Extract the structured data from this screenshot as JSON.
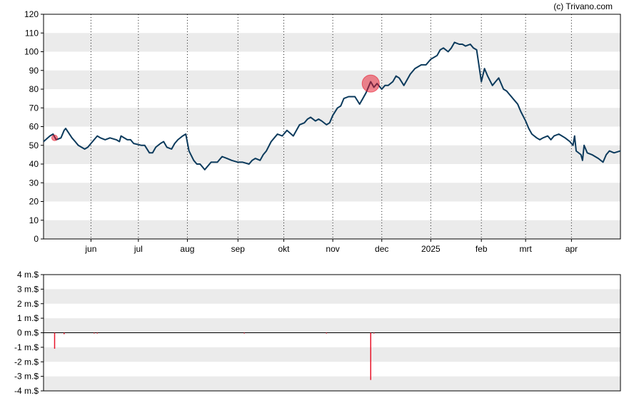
{
  "credit": "(c) Trivano.com",
  "colors": {
    "price_line": "#0b3a5c",
    "band": "#ebebeb",
    "volume_bar": "#e8152a",
    "marker": "#e8152a"
  },
  "chart_data": [
    {
      "type": "line",
      "title": "",
      "xlabel": "",
      "ylabel": "",
      "ylim": [
        0,
        120
      ],
      "y_ticks": [
        "0",
        "10",
        "20",
        "30",
        "40",
        "50",
        "60",
        "70",
        "80",
        "90",
        "100",
        "110",
        "120"
      ],
      "x_ticks": [
        {
          "label": "jun",
          "date": "2024-06-01"
        },
        {
          "label": "jul",
          "date": "2024-07-01"
        },
        {
          "label": "aug",
          "date": "2024-08-01"
        },
        {
          "label": "sep",
          "date": "2024-09-02"
        },
        {
          "label": "okt",
          "date": "2024-10-01"
        },
        {
          "label": "nov",
          "date": "2024-11-01"
        },
        {
          "label": "dec",
          "date": "2024-12-02"
        },
        {
          "label": "2025",
          "date": "2025-01-02"
        },
        {
          "label": "feb",
          "date": "2025-02-03"
        },
        {
          "label": "mrt",
          "date": "2025-03-03"
        },
        {
          "label": "apr",
          "date": "2025-04-01"
        }
      ],
      "x_range": [
        "2024-05-02",
        "2025-05-02"
      ],
      "grid": "alternating horizontal bands, dotted vertical lines at month ticks",
      "series": [
        {
          "points": [
            [
              "2024-05-02",
              52
            ],
            [
              "2024-05-06",
              55
            ],
            [
              "2024-05-08",
              56
            ],
            [
              "2024-05-10",
              53
            ],
            [
              "2024-05-13",
              54
            ],
            [
              "2024-05-15",
              58
            ],
            [
              "2024-05-16",
              59
            ],
            [
              "2024-05-20",
              54
            ],
            [
              "2024-05-22",
              52
            ],
            [
              "2024-05-24",
              50
            ],
            [
              "2024-05-28",
              48
            ],
            [
              "2024-05-30",
              49
            ],
            [
              "2024-06-03",
              53
            ],
            [
              "2024-06-05",
              55
            ],
            [
              "2024-06-07",
              54
            ],
            [
              "2024-06-10",
              53
            ],
            [
              "2024-06-13",
              54
            ],
            [
              "2024-06-17",
              53
            ],
            [
              "2024-06-19",
              52
            ],
            [
              "2024-06-20",
              55
            ],
            [
              "2024-06-24",
              53
            ],
            [
              "2024-06-26",
              53
            ],
            [
              "2024-06-28",
              51
            ],
            [
              "2024-07-03",
              50
            ],
            [
              "2024-07-05",
              50
            ],
            [
              "2024-07-08",
              46
            ],
            [
              "2024-07-10",
              46
            ],
            [
              "2024-07-12",
              49
            ],
            [
              "2024-07-15",
              51
            ],
            [
              "2024-07-17",
              52
            ],
            [
              "2024-07-19",
              49
            ],
            [
              "2024-07-22",
              48
            ],
            [
              "2024-07-24",
              51
            ],
            [
              "2024-07-26",
              53
            ],
            [
              "2024-07-29",
              55
            ],
            [
              "2024-07-31",
              56
            ],
            [
              "2024-08-02",
              47
            ],
            [
              "2024-08-05",
              42
            ],
            [
              "2024-08-07",
              40
            ],
            [
              "2024-08-09",
              40
            ],
            [
              "2024-08-12",
              37
            ],
            [
              "2024-08-14",
              39
            ],
            [
              "2024-08-16",
              41
            ],
            [
              "2024-08-20",
              41
            ],
            [
              "2024-08-23",
              44
            ],
            [
              "2024-08-26",
              43
            ],
            [
              "2024-08-29",
              42
            ],
            [
              "2024-09-02",
              41
            ],
            [
              "2024-09-05",
              41
            ],
            [
              "2024-09-09",
              40
            ],
            [
              "2024-09-11",
              42
            ],
            [
              "2024-09-13",
              43
            ],
            [
              "2024-09-16",
              42
            ],
            [
              "2024-09-18",
              45
            ],
            [
              "2024-09-20",
              47
            ],
            [
              "2024-09-23",
              52
            ],
            [
              "2024-09-25",
              54
            ],
            [
              "2024-09-27",
              56
            ],
            [
              "2024-09-30",
              55
            ],
            [
              "2024-10-03",
              58
            ],
            [
              "2024-10-07",
              55
            ],
            [
              "2024-10-09",
              58
            ],
            [
              "2024-10-11",
              61
            ],
            [
              "2024-10-14",
              62
            ],
            [
              "2024-10-16",
              64
            ],
            [
              "2024-10-18",
              65
            ],
            [
              "2024-10-21",
              63
            ],
            [
              "2024-10-23",
              64
            ],
            [
              "2024-10-25",
              63
            ],
            [
              "2024-10-28",
              61
            ],
            [
              "2024-10-30",
              62
            ],
            [
              "2024-11-01",
              66
            ],
            [
              "2024-11-04",
              70
            ],
            [
              "2024-11-06",
              71
            ],
            [
              "2024-11-08",
              75
            ],
            [
              "2024-11-11",
              76
            ],
            [
              "2024-11-13",
              76
            ],
            [
              "2024-11-15",
              76
            ],
            [
              "2024-11-18",
              72
            ],
            [
              "2024-11-20",
              75
            ],
            [
              "2024-11-22",
              78
            ],
            [
              "2024-11-25",
              84
            ],
            [
              "2024-11-27",
              81
            ],
            [
              "2024-11-29",
              83
            ],
            [
              "2024-12-02",
              80
            ],
            [
              "2024-12-04",
              82
            ],
            [
              "2024-12-06",
              82
            ],
            [
              "2024-12-09",
              84
            ],
            [
              "2024-12-11",
              87
            ],
            [
              "2024-12-13",
              86
            ],
            [
              "2024-12-16",
              82
            ],
            [
              "2024-12-18",
              85
            ],
            [
              "2024-12-20",
              88
            ],
            [
              "2024-12-23",
              91
            ],
            [
              "2024-12-27",
              93
            ],
            [
              "2024-12-30",
              93
            ],
            [
              "2025-01-02",
              96
            ],
            [
              "2025-01-06",
              98
            ],
            [
              "2025-01-08",
              101
            ],
            [
              "2025-01-10",
              102
            ],
            [
              "2025-01-13",
              100
            ],
            [
              "2025-01-15",
              102
            ],
            [
              "2025-01-17",
              105
            ],
            [
              "2025-01-20",
              104
            ],
            [
              "2025-01-22",
              104
            ],
            [
              "2025-01-24",
              103
            ],
            [
              "2025-01-27",
              104
            ],
            [
              "2025-01-29",
              102
            ],
            [
              "2025-01-31",
              101
            ],
            [
              "2025-02-03",
              84
            ],
            [
              "2025-02-05",
              91
            ],
            [
              "2025-02-07",
              87
            ],
            [
              "2025-02-10",
              82
            ],
            [
              "2025-02-12",
              84
            ],
            [
              "2025-02-14",
              86
            ],
            [
              "2025-02-17",
              80
            ],
            [
              "2025-02-19",
              79
            ],
            [
              "2025-02-21",
              77
            ],
            [
              "2025-02-24",
              74
            ],
            [
              "2025-02-26",
              72
            ],
            [
              "2025-02-28",
              68
            ],
            [
              "2025-03-03",
              63
            ],
            [
              "2025-03-05",
              59
            ],
            [
              "2025-03-07",
              56
            ],
            [
              "2025-03-10",
              54
            ],
            [
              "2025-03-12",
              53
            ],
            [
              "2025-03-14",
              54
            ],
            [
              "2025-03-17",
              55
            ],
            [
              "2025-03-19",
              53
            ],
            [
              "2025-03-21",
              55
            ],
            [
              "2025-03-24",
              56
            ],
            [
              "2025-03-26",
              55
            ],
            [
              "2025-03-28",
              54
            ],
            [
              "2025-03-31",
              52
            ],
            [
              "2025-04-02",
              50
            ],
            [
              "2025-04-03",
              55
            ],
            [
              "2025-04-04",
              47
            ],
            [
              "2025-04-07",
              45
            ],
            [
              "2025-04-08",
              42
            ],
            [
              "2025-04-09",
              50
            ],
            [
              "2025-04-11",
              46
            ],
            [
              "2025-04-14",
              45
            ],
            [
              "2025-04-16",
              44
            ],
            [
              "2025-04-18",
              43
            ],
            [
              "2025-04-21",
              41
            ],
            [
              "2025-04-23",
              45
            ],
            [
              "2025-04-25",
              47
            ],
            [
              "2025-04-28",
              46
            ],
            [
              "2025-05-02",
              47
            ]
          ]
        }
      ],
      "markers": [
        {
          "date": "2024-05-09",
          "value": 54,
          "size": "small"
        },
        {
          "date": "2024-11-25",
          "value": 83,
          "size": "large"
        }
      ]
    },
    {
      "type": "bar",
      "title": "",
      "xlabel": "",
      "ylabel": "",
      "ylim": [
        -4,
        4
      ],
      "y_ticks": [
        "4 m.$",
        "3 m.$",
        "2 m.$",
        "1 m.$",
        "0 m.$",
        "-1 m.$",
        "-2 m.$",
        "-3 m.$",
        "-4 m.$"
      ],
      "bars": [
        {
          "date": "2024-05-09",
          "value": -1.1
        },
        {
          "date": "2024-05-15",
          "value": -0.1
        },
        {
          "date": "2024-06-03",
          "value": -0.05
        },
        {
          "date": "2024-06-05",
          "value": -0.05
        },
        {
          "date": "2024-09-06",
          "value": -0.05
        },
        {
          "date": "2024-10-28",
          "value": -0.05
        },
        {
          "date": "2024-11-25",
          "value": -3.25
        },
        {
          "date": "2024-11-27",
          "value": -0.05
        }
      ]
    }
  ]
}
